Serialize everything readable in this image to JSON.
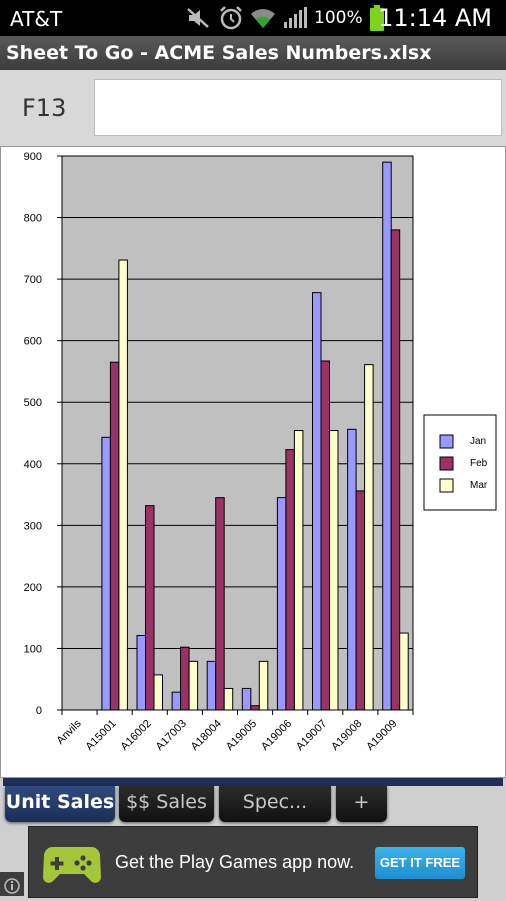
{
  "status_bar": {
    "carrier": "AT&T",
    "battery_percent": "100%",
    "time": "11:14 AM",
    "icons": [
      "mute-icon",
      "alarm-icon",
      "wifi-icon",
      "signal-icon",
      "battery-icon"
    ]
  },
  "app": {
    "title": "Sheet To Go - ACME Sales Numbers.xlsx"
  },
  "cell_bar": {
    "reference": "F13",
    "formula_value": ""
  },
  "chart_data": {
    "type": "bar",
    "categories": [
      "Anvils",
      "A15001",
      "A16002",
      "A17003",
      "A18004",
      "A19005",
      "A19006",
      "A19007",
      "A19008",
      "A19009"
    ],
    "series": [
      {
        "name": "Jan",
        "color": "#9999ff",
        "values": [
          0,
          443,
          121,
          29,
          79,
          35,
          345,
          678,
          456,
          890
        ]
      },
      {
        "name": "Feb",
        "color": "#993366",
        "values": [
          0,
          565,
          332,
          102,
          345,
          7,
          423,
          567,
          356,
          780
        ]
      },
      {
        "name": "Mar",
        "color": "#ffffcc",
        "values": [
          0,
          731,
          57,
          79,
          35,
          79,
          454,
          454,
          561,
          125
        ]
      }
    ],
    "ylim": [
      0,
      900
    ],
    "yticks": [
      0,
      100,
      200,
      300,
      400,
      500,
      600,
      700,
      800,
      900
    ],
    "grid": true,
    "legend": "right",
    "plot_background": "#c0c0c0",
    "title": "",
    "xlabel": "",
    "ylabel": ""
  },
  "tabs": [
    {
      "label": "Unit Sales",
      "active": true
    },
    {
      "label": "$$ Sales",
      "active": false
    },
    {
      "label": "Spec...",
      "active": false
    },
    {
      "label": "+",
      "active": false
    }
  ],
  "ad": {
    "text": "Get the Play Games app now.",
    "button": "GET IT FREE",
    "icon": "play-games-icon",
    "info_icon": "info-icon"
  }
}
